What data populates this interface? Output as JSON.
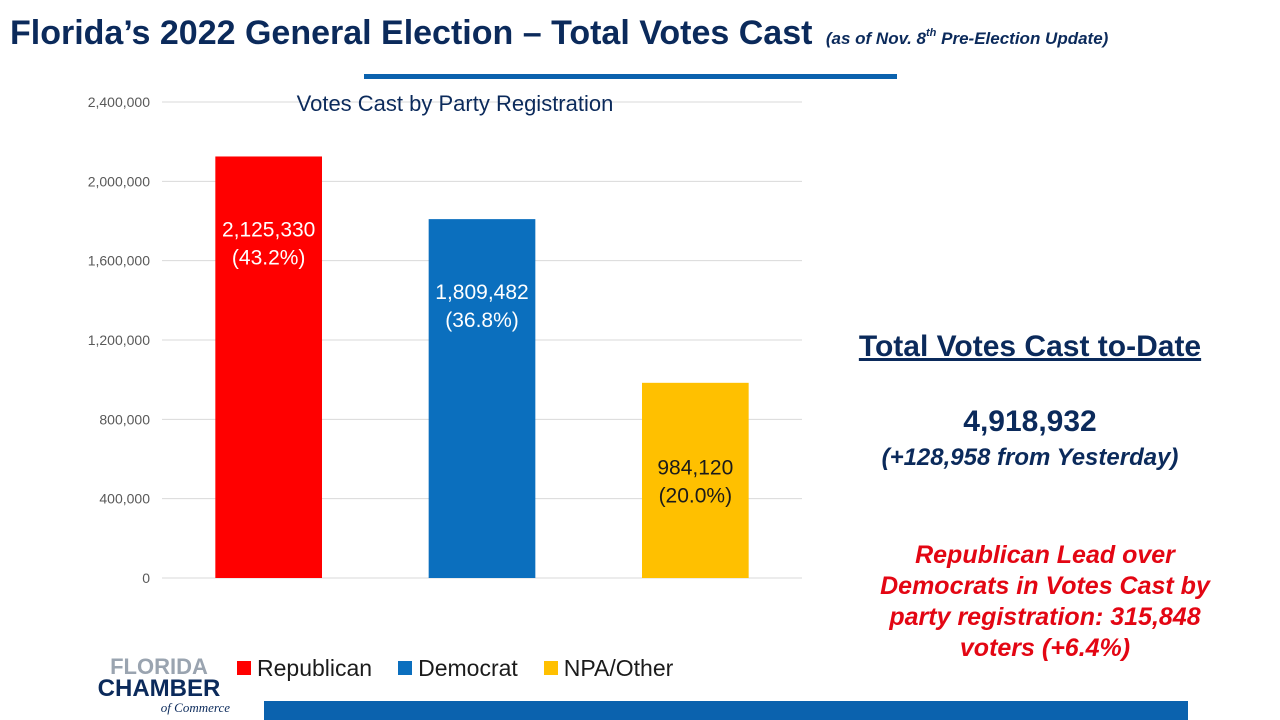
{
  "header": {
    "title": "Florida’s 2022 General Election – Total Votes Cast",
    "subtitle_pre": "(as of Nov. 8",
    "subtitle_sup": "th",
    "subtitle_post": " Pre-Election Update)"
  },
  "chart_data": {
    "type": "bar",
    "title": "Votes Cast by Party Registration",
    "categories": [
      "Republican",
      "Democrat",
      "NPA/Other"
    ],
    "values": [
      2125330,
      1809482,
      984120
    ],
    "data_labels": [
      [
        "2,125,330",
        "(43.2%)"
      ],
      [
        "1,809,482",
        "(36.8%)"
      ],
      [
        "984,120",
        "(20.0%)"
      ]
    ],
    "colors": [
      "#ff0000",
      "#0b6fbe",
      "#ffc000"
    ],
    "label_colors": [
      "#ffffff",
      "#ffffff",
      "#1b1b1b"
    ],
    "ylim": [
      0,
      2400000
    ],
    "yticks": [
      0,
      400000,
      800000,
      1200000,
      1600000,
      2000000,
      2400000
    ],
    "ytick_labels": [
      "0",
      "400,000",
      "800,000",
      "1,200,000",
      "1,600,000",
      "2,000,000",
      "2,400,000"
    ],
    "grid": true,
    "legend_position": "bottom"
  },
  "summary": {
    "heading": "Total Votes Cast to-Date",
    "total": "4,918,932",
    "change": "(+128,958 from Yesterday)",
    "lead_text": "Republican Lead over Democrats in Votes Cast by party registration: 315,848 voters (+6.4%)"
  },
  "logo": {
    "line1": "FLORIDA",
    "line2": "CHAMBER",
    "line3": "of Commerce"
  }
}
